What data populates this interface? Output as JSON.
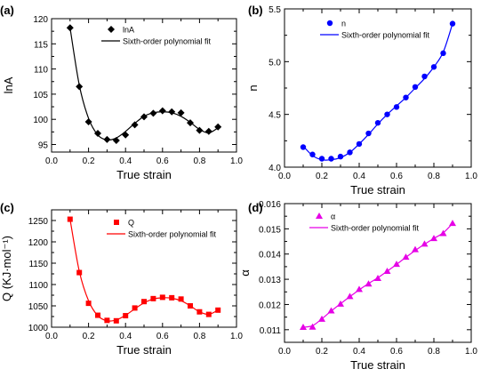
{
  "chart_data": [
    {
      "panel_label": "(a)",
      "type": "scatter",
      "xlabel": "True strain",
      "ylabel": "lnA",
      "xlim": [
        0.0,
        1.0
      ],
      "ylim": [
        93.5,
        120
      ],
      "xticks": [
        "0.0",
        "0.2",
        "0.4",
        "0.6",
        "0.8",
        "1.0"
      ],
      "yticks": [
        "95",
        "100",
        "105",
        "110",
        "115",
        "120"
      ],
      "legend": {
        "position": "top-right",
        "entries": [
          "lnA",
          "Sixth-order polynomial fit"
        ]
      },
      "color": "#000000",
      "marker": "diamond",
      "series": [
        {
          "name": "lnA",
          "x": [
            0.1,
            0.15,
            0.2,
            0.25,
            0.3,
            0.35,
            0.4,
            0.45,
            0.5,
            0.55,
            0.6,
            0.65,
            0.7,
            0.75,
            0.8,
            0.85,
            0.9
          ],
          "y": [
            118.2,
            106.5,
            99.5,
            97.2,
            96.0,
            95.8,
            96.9,
            98.9,
            100.5,
            101.2,
            101.7,
            101.5,
            101.3,
            99.3,
            97.8,
            97.6,
            98.5
          ]
        }
      ],
      "fit": {
        "name": "Sixth-order polynomial fit",
        "x": [
          0.1,
          0.15,
          0.2,
          0.25,
          0.3,
          0.35,
          0.4,
          0.45,
          0.5,
          0.55,
          0.6,
          0.65,
          0.7,
          0.75,
          0.8,
          0.85,
          0.9
        ],
        "y": [
          118.2,
          106.8,
          100.2,
          96.9,
          95.9,
          96.3,
          97.6,
          99.2,
          100.6,
          101.3,
          101.5,
          101.3,
          100.6,
          99.4,
          98.0,
          97.3,
          98.3
        ]
      }
    },
    {
      "panel_label": "(b)",
      "type": "scatter",
      "xlabel": "True strain",
      "ylabel": "n",
      "xlim": [
        0.0,
        1.0
      ],
      "ylim": [
        4.0,
        5.5
      ],
      "xticks": [
        "0.0",
        "0.2",
        "0.4",
        "0.6",
        "0.8",
        "1.0"
      ],
      "yticks": [
        "4.0",
        "4.5",
        "5.0",
        "5.5"
      ],
      "legend": {
        "position": "top-right",
        "entries": [
          "n",
          "Sixth-order polynomial fit"
        ]
      },
      "color": "#0000ff",
      "marker": "circle",
      "series": [
        {
          "name": "n",
          "x": [
            0.1,
            0.15,
            0.2,
            0.25,
            0.3,
            0.35,
            0.4,
            0.45,
            0.5,
            0.55,
            0.6,
            0.65,
            0.7,
            0.75,
            0.8,
            0.85,
            0.9
          ],
          "y": [
            4.19,
            4.12,
            4.08,
            4.08,
            4.1,
            4.14,
            4.22,
            4.32,
            4.42,
            4.5,
            4.57,
            4.66,
            4.76,
            4.86,
            4.95,
            5.08,
            5.36
          ]
        }
      ],
      "fit": {
        "name": "Sixth-order polynomial fit",
        "x": [
          0.1,
          0.15,
          0.2,
          0.25,
          0.3,
          0.35,
          0.4,
          0.45,
          0.5,
          0.55,
          0.6,
          0.65,
          0.7,
          0.75,
          0.8,
          0.85,
          0.9
        ],
        "y": [
          4.2,
          4.11,
          4.07,
          4.07,
          4.09,
          4.14,
          4.22,
          4.31,
          4.41,
          4.5,
          4.58,
          4.66,
          4.75,
          4.84,
          4.95,
          5.09,
          5.36
        ]
      }
    },
    {
      "panel_label": "(c)",
      "type": "scatter",
      "xlabel": "True strain",
      "ylabel": "Q (KJ·mol⁻¹)",
      "xlim": [
        0.0,
        1.0
      ],
      "ylim": [
        1000,
        1275
      ],
      "xticks": [
        "0.0",
        "0.2",
        "0.4",
        "0.6",
        "0.8",
        "1.0"
      ],
      "yticks": [
        "1000",
        "1050",
        "1100",
        "1150",
        "1200",
        "1250"
      ],
      "legend": {
        "position": "top-right",
        "entries": [
          "Q",
          "Sixth-order polynomial fit"
        ]
      },
      "color": "#ff0000",
      "marker": "square",
      "series": [
        {
          "name": "Q",
          "x": [
            0.1,
            0.15,
            0.2,
            0.25,
            0.3,
            0.35,
            0.4,
            0.45,
            0.5,
            0.55,
            0.6,
            0.65,
            0.7,
            0.75,
            0.8,
            0.85,
            0.9
          ],
          "y": [
            1253,
            1128,
            1056,
            1028,
            1016,
            1015,
            1027,
            1045,
            1060,
            1067,
            1070,
            1069,
            1066,
            1050,
            1036,
            1030,
            1040
          ]
        }
      ],
      "fit": {
        "name": "Sixth-order polynomial fit",
        "x": [
          0.1,
          0.15,
          0.2,
          0.25,
          0.3,
          0.35,
          0.4,
          0.45,
          0.5,
          0.55,
          0.6,
          0.65,
          0.7,
          0.75,
          0.8,
          0.85,
          0.9
        ],
        "y": [
          1253,
          1131,
          1062,
          1027,
          1015,
          1017,
          1028,
          1043,
          1057,
          1066,
          1069,
          1068,
          1062,
          1050,
          1036,
          1030,
          1040
        ]
      }
    },
    {
      "panel_label": "(d)",
      "type": "scatter",
      "xlabel": "True strain",
      "ylabel": "α",
      "xlim": [
        0.0,
        1.0
      ],
      "ylim": [
        0.0105,
        0.016
      ],
      "xticks": [
        "0.0",
        "0.2",
        "0.4",
        "0.6",
        "0.8",
        "1.0"
      ],
      "yticks": [
        "0.011",
        "0.012",
        "0.013",
        "0.014",
        "0.015",
        "0.016"
      ],
      "legend": {
        "position": "top-right",
        "entries": [
          "α",
          "Sixth-order polynomial fit"
        ]
      },
      "color": "#e600e6",
      "marker": "triangle",
      "series": [
        {
          "name": "α",
          "x": [
            0.1,
            0.15,
            0.2,
            0.25,
            0.3,
            0.35,
            0.4,
            0.45,
            0.5,
            0.55,
            0.6,
            0.65,
            0.7,
            0.75,
            0.8,
            0.85,
            0.9
          ],
          "y": [
            0.0111,
            0.01111,
            0.01142,
            0.01175,
            0.01202,
            0.01232,
            0.0126,
            0.01282,
            0.01304,
            0.01332,
            0.0136,
            0.01388,
            0.01418,
            0.0144,
            0.01462,
            0.01482,
            0.01522
          ]
        }
      ],
      "fit": {
        "name": "Sixth-order polynomial fit",
        "x": [
          0.1,
          0.15,
          0.2,
          0.25,
          0.3,
          0.35,
          0.4,
          0.45,
          0.5,
          0.55,
          0.6,
          0.65,
          0.7,
          0.75,
          0.8,
          0.85,
          0.9
        ],
        "y": [
          0.0111,
          0.01116,
          0.01143,
          0.01174,
          0.01203,
          0.01231,
          0.01258,
          0.01283,
          0.01306,
          0.01332,
          0.01359,
          0.01387,
          0.01414,
          0.01439,
          0.01462,
          0.01484,
          0.01521
        ]
      }
    }
  ]
}
